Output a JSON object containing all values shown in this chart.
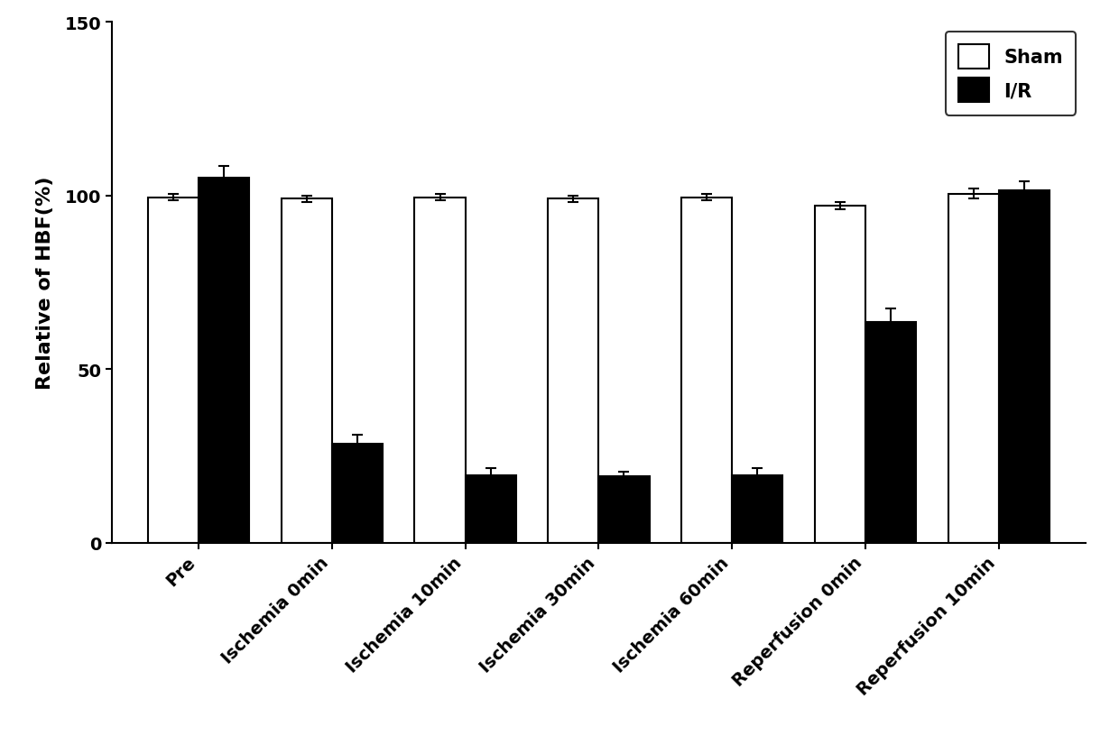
{
  "categories": [
    "Pre",
    "Ischemia 0min",
    "Ischemia 10min",
    "Ischemia 30min",
    "Ischemia 60min",
    "Reperfusion 0min",
    "Reperfusion 10min"
  ],
  "sham_values": [
    99.5,
    99.0,
    99.5,
    99.0,
    99.5,
    97.0,
    100.5
  ],
  "ir_values": [
    105.0,
    28.5,
    19.5,
    19.0,
    19.5,
    63.5,
    101.5
  ],
  "sham_errors": [
    1.0,
    1.0,
    1.0,
    1.0,
    1.0,
    1.0,
    1.5
  ],
  "ir_errors": [
    3.5,
    2.5,
    2.0,
    1.5,
    2.0,
    4.0,
    2.5
  ],
  "sham_color": "#ffffff",
  "ir_color": "#000000",
  "bar_edge_color": "#000000",
  "ylabel": "Relative of HBF(%)",
  "ylim": [
    0,
    150
  ],
  "yticks": [
    0,
    50,
    100,
    150
  ],
  "legend_labels": [
    "Sham",
    "I/R"
  ],
  "bar_width": 0.38,
  "tick_label_fontsize": 14,
  "axis_label_fontsize": 16,
  "legend_fontsize": 15,
  "error_capsize": 4,
  "error_linewidth": 1.5,
  "bar_linewidth": 1.5
}
